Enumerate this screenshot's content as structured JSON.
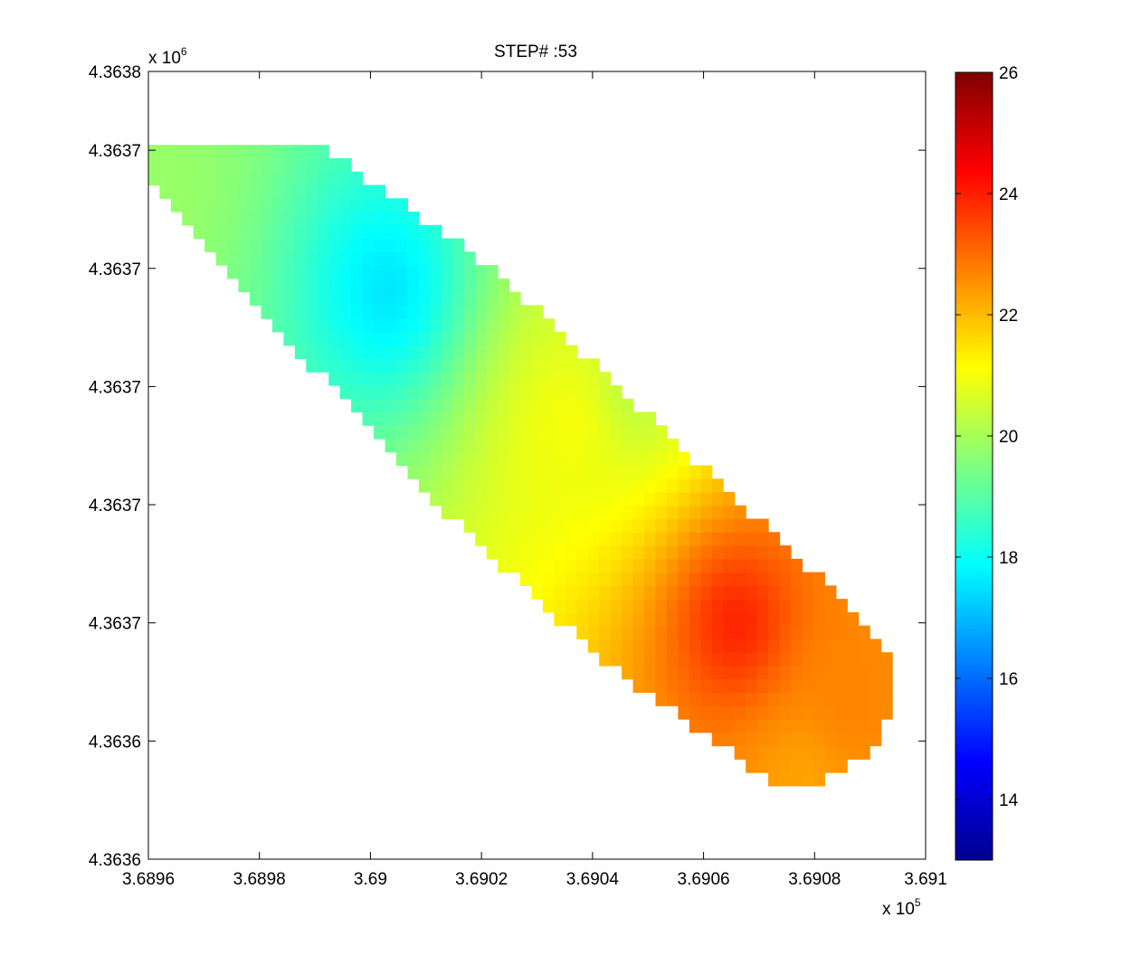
{
  "chart_data": {
    "type": "heatmap",
    "title": "STEP# :53",
    "xlabel": "",
    "ylabel": "",
    "x_exponent_label": {
      "base": "x 10",
      "power": "5"
    },
    "y_exponent_label": {
      "base": "x 10",
      "power": "6"
    },
    "xlim": [
      3.6896,
      3.691
    ],
    "ylim": [
      4.3636,
      4.3638
    ],
    "x_ticks": [
      {
        "value": 3.6896,
        "label": "3.6896"
      },
      {
        "value": 3.6898,
        "label": "3.6898"
      },
      {
        "value": 3.69,
        "label": "3.69"
      },
      {
        "value": 3.6902,
        "label": "3.6902"
      },
      {
        "value": 3.6904,
        "label": "3.6904"
      },
      {
        "value": 3.6906,
        "label": "3.6906"
      },
      {
        "value": 3.6908,
        "label": "3.6908"
      },
      {
        "value": 3.691,
        "label": "3.691"
      }
    ],
    "y_ticks": [
      {
        "value": 4.3636,
        "label": "4.3636"
      },
      {
        "value": 4.36363,
        "label": "4.3636"
      },
      {
        "value": 4.36366,
        "label": "4.3637"
      },
      {
        "value": 4.36369,
        "label": "4.3637"
      },
      {
        "value": 4.36372,
        "label": "4.3637"
      },
      {
        "value": 4.36375,
        "label": "4.3637"
      },
      {
        "value": 4.36378,
        "label": "4.3637"
      },
      {
        "value": 4.3638,
        "label": "4.3638"
      }
    ],
    "colorbar": {
      "range": [
        13,
        26
      ],
      "colormap": "jet",
      "ticks": [
        {
          "value": 14,
          "label": "14"
        },
        {
          "value": 16,
          "label": "16"
        },
        {
          "value": 18,
          "label": "18"
        },
        {
          "value": 20,
          "label": "20"
        },
        {
          "value": 22,
          "label": "22"
        },
        {
          "value": 24,
          "label": "24"
        },
        {
          "value": 26,
          "label": "26"
        }
      ]
    },
    "field": {
      "grid_x_start": 3.68961,
      "grid_x_end": 3.69095,
      "nx": 67,
      "grid_y_start": 4.3636,
      "grid_y_end": 4.3638,
      "ny": 60,
      "band_edge_upper": [
        [
          3.68961,
          4.36378
        ],
        [
          3.68992,
          4.36378
        ],
        [
          3.69022,
          4.36375
        ],
        [
          3.69052,
          4.36371
        ],
        [
          3.69082,
          4.36367
        ],
        [
          3.69095,
          4.36365
        ]
      ],
      "band_edge_lower": [
        [
          3.68961,
          4.36377
        ],
        [
          3.69012,
          4.36369
        ],
        [
          3.69042,
          4.36365
        ],
        [
          3.69072,
          4.36362
        ],
        [
          3.69082,
          4.36362
        ],
        [
          3.69092,
          4.36363
        ],
        [
          3.69095,
          4.36365
        ]
      ],
      "features": [
        {
          "x": 3.68961,
          "y": 4.36377,
          "value": 19.8
        },
        {
          "x": 3.69003,
          "y": 4.363745,
          "value": 17.6
        },
        {
          "x": 3.69048,
          "y": 4.36372,
          "value": 20.3
        },
        {
          "x": 3.69036,
          "y": 4.36371,
          "value": 21.0
        },
        {
          "x": 3.69066,
          "y": 4.36366,
          "value": 23.9
        },
        {
          "x": 3.69086,
          "y": 4.36364,
          "value": 22.7
        },
        {
          "x": 3.69078,
          "y": 4.36362,
          "value": 22.3
        }
      ]
    }
  }
}
